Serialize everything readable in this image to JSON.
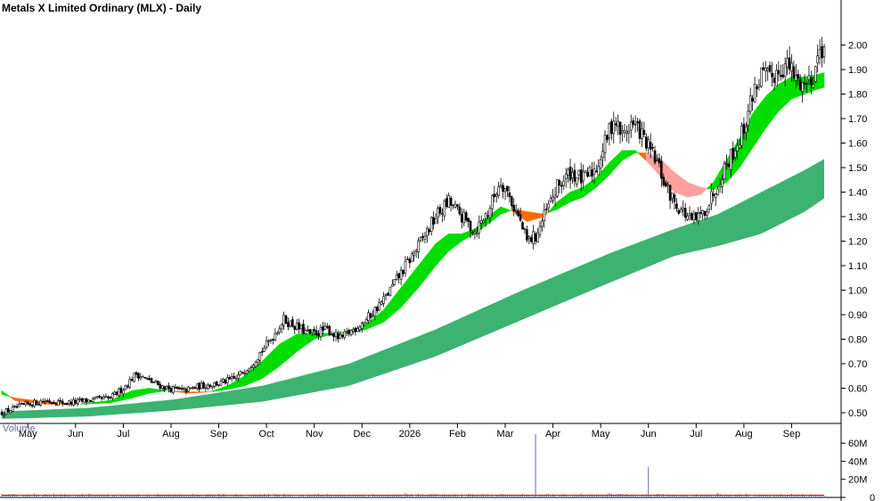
{
  "chart_data": {
    "type": "candlestick",
    "title": "Metals X Limited Ordinary (MLX) - Daily",
    "price_axis": {
      "ticks": [
        "0.50",
        "0.60",
        "0.70",
        "0.80",
        "0.90",
        "1.00",
        "1.10",
        "1.20",
        "1.30",
        "1.40",
        "1.50",
        "1.60",
        "1.70",
        "1.80",
        "1.90",
        "2.00"
      ],
      "ylim": [
        0.45,
        2.02
      ]
    },
    "x_axis": {
      "tick_labels": [
        "May",
        "Jun",
        "Jul",
        "Aug",
        "Sep",
        "Oct",
        "Nov",
        "Dec",
        "2026",
        "Feb",
        "Mar",
        "Apr",
        "May",
        "Jun",
        "Jul",
        "Aug",
        "Sep"
      ],
      "tick_index": [
        12,
        34,
        56,
        78,
        100,
        122,
        144,
        166,
        188,
        210,
        232,
        254,
        276,
        298,
        320,
        342,
        364
      ],
      "n_bars": 380
    },
    "close_path": [
      [
        0,
        0.5
      ],
      [
        10,
        0.53
      ],
      [
        20,
        0.55
      ],
      [
        30,
        0.54
      ],
      [
        40,
        0.55
      ],
      [
        50,
        0.56
      ],
      [
        56,
        0.6
      ],
      [
        62,
        0.66
      ],
      [
        68,
        0.63
      ],
      [
        76,
        0.6
      ],
      [
        84,
        0.59
      ],
      [
        92,
        0.61
      ],
      [
        100,
        0.62
      ],
      [
        108,
        0.64
      ],
      [
        116,
        0.71
      ],
      [
        124,
        0.8
      ],
      [
        130,
        0.88
      ],
      [
        136,
        0.85
      ],
      [
        142,
        0.82
      ],
      [
        150,
        0.84
      ],
      [
        156,
        0.8
      ],
      [
        162,
        0.84
      ],
      [
        168,
        0.88
      ],
      [
        176,
        0.96
      ],
      [
        184,
        1.07
      ],
      [
        192,
        1.18
      ],
      [
        200,
        1.3
      ],
      [
        206,
        1.36
      ],
      [
        212,
        1.3
      ],
      [
        218,
        1.24
      ],
      [
        224,
        1.32
      ],
      [
        230,
        1.45
      ],
      [
        234,
        1.38
      ],
      [
        238,
        1.3
      ],
      [
        242,
        1.2
      ],
      [
        246,
        1.22
      ],
      [
        250,
        1.3
      ],
      [
        256,
        1.42
      ],
      [
        262,
        1.48
      ],
      [
        268,
        1.45
      ],
      [
        274,
        1.5
      ],
      [
        278,
        1.6
      ],
      [
        282,
        1.7
      ],
      [
        286,
        1.63
      ],
      [
        290,
        1.68
      ],
      [
        294,
        1.65
      ],
      [
        298,
        1.58
      ],
      [
        302,
        1.52
      ],
      [
        306,
        1.42
      ],
      [
        310,
        1.36
      ],
      [
        314,
        1.32
      ],
      [
        318,
        1.28
      ],
      [
        322,
        1.3
      ],
      [
        326,
        1.36
      ],
      [
        330,
        1.44
      ],
      [
        334,
        1.52
      ],
      [
        338,
        1.58
      ],
      [
        342,
        1.66
      ],
      [
        346,
        1.8
      ],
      [
        350,
        1.88
      ],
      [
        354,
        1.86
      ],
      [
        358,
        1.9
      ],
      [
        362,
        1.92
      ],
      [
        366,
        1.86
      ],
      [
        370,
        1.84
      ],
      [
        374,
        1.88
      ],
      [
        377,
        1.98
      ],
      [
        379,
        2.0
      ]
    ],
    "short_ribbon": {
      "fast": [
        [
          0,
          0.59
        ],
        [
          6,
          0.55
        ],
        [
          20,
          0.535
        ],
        [
          36,
          0.535
        ],
        [
          50,
          0.55
        ],
        [
          60,
          0.59
        ],
        [
          68,
          0.6
        ],
        [
          76,
          0.59
        ],
        [
          86,
          0.58
        ],
        [
          96,
          0.585
        ],
        [
          104,
          0.61
        ],
        [
          112,
          0.65
        ],
        [
          120,
          0.71
        ],
        [
          128,
          0.78
        ],
        [
          136,
          0.82
        ],
        [
          144,
          0.825
        ],
        [
          152,
          0.823
        ],
        [
          160,
          0.83
        ],
        [
          168,
          0.86
        ],
        [
          176,
          0.92
        ],
        [
          184,
          1.01
        ],
        [
          192,
          1.1
        ],
        [
          200,
          1.19
        ],
        [
          206,
          1.23
        ],
        [
          212,
          1.23
        ],
        [
          218,
          1.25
        ],
        [
          224,
          1.3
        ],
        [
          230,
          1.34
        ],
        [
          236,
          1.32
        ],
        [
          242,
          1.28
        ],
        [
          250,
          1.3
        ],
        [
          256,
          1.36
        ],
        [
          262,
          1.4
        ],
        [
          268,
          1.42
        ],
        [
          274,
          1.46
        ],
        [
          280,
          1.52
        ],
        [
          286,
          1.57
        ],
        [
          292,
          1.57
        ],
        [
          298,
          1.52
        ],
        [
          304,
          1.46
        ],
        [
          310,
          1.4
        ],
        [
          316,
          1.38
        ],
        [
          322,
          1.39
        ],
        [
          328,
          1.44
        ],
        [
          334,
          1.53
        ],
        [
          340,
          1.62
        ],
        [
          346,
          1.72
        ],
        [
          352,
          1.79
        ],
        [
          358,
          1.84
        ],
        [
          364,
          1.87
        ],
        [
          370,
          1.87
        ],
        [
          376,
          1.88
        ],
        [
          380,
          1.89
        ]
      ],
      "slow": [
        [
          0,
          0.575
        ],
        [
          6,
          0.56
        ],
        [
          20,
          0.545
        ],
        [
          36,
          0.535
        ],
        [
          50,
          0.54
        ],
        [
          60,
          0.56
        ],
        [
          68,
          0.58
        ],
        [
          76,
          0.59
        ],
        [
          86,
          0.585
        ],
        [
          96,
          0.585
        ],
        [
          104,
          0.595
        ],
        [
          112,
          0.61
        ],
        [
          120,
          0.64
        ],
        [
          128,
          0.69
        ],
        [
          136,
          0.75
        ],
        [
          144,
          0.8
        ],
        [
          152,
          0.82
        ],
        [
          160,
          0.826
        ],
        [
          168,
          0.84
        ],
        [
          176,
          0.87
        ],
        [
          184,
          0.93
        ],
        [
          192,
          1.01
        ],
        [
          200,
          1.1
        ],
        [
          206,
          1.16
        ],
        [
          212,
          1.2
        ],
        [
          218,
          1.23
        ],
        [
          224,
          1.27
        ],
        [
          230,
          1.31
        ],
        [
          236,
          1.33
        ],
        [
          242,
          1.32
        ],
        [
          250,
          1.31
        ],
        [
          256,
          1.33
        ],
        [
          262,
          1.36
        ],
        [
          268,
          1.38
        ],
        [
          274,
          1.42
        ],
        [
          280,
          1.47
        ],
        [
          286,
          1.53
        ],
        [
          292,
          1.56
        ],
        [
          298,
          1.56
        ],
        [
          304,
          1.53
        ],
        [
          310,
          1.48
        ],
        [
          316,
          1.44
        ],
        [
          322,
          1.42
        ],
        [
          328,
          1.41
        ],
        [
          334,
          1.44
        ],
        [
          340,
          1.5
        ],
        [
          346,
          1.58
        ],
        [
          352,
          1.66
        ],
        [
          358,
          1.73
        ],
        [
          364,
          1.78
        ],
        [
          370,
          1.8
        ],
        [
          376,
          1.82
        ],
        [
          380,
          1.83
        ]
      ]
    },
    "long_ribbon": {
      "upper": [
        [
          0,
          0.505
        ],
        [
          40,
          0.52
        ],
        [
          80,
          0.555
        ],
        [
          120,
          0.61
        ],
        [
          160,
          0.7
        ],
        [
          200,
          0.84
        ],
        [
          240,
          1.0
        ],
        [
          280,
          1.15
        ],
        [
          310,
          1.25
        ],
        [
          330,
          1.31
        ],
        [
          350,
          1.4
        ],
        [
          370,
          1.49
        ],
        [
          380,
          1.54
        ]
      ],
      "lower": [
        [
          0,
          0.475
        ],
        [
          40,
          0.485
        ],
        [
          80,
          0.51
        ],
        [
          120,
          0.545
        ],
        [
          160,
          0.61
        ],
        [
          200,
          0.73
        ],
        [
          240,
          0.88
        ],
        [
          280,
          1.03
        ],
        [
          310,
          1.14
        ],
        [
          330,
          1.18
        ],
        [
          350,
          1.23
        ],
        [
          370,
          1.32
        ],
        [
          380,
          1.38
        ]
      ]
    },
    "volume": {
      "label": "Volume",
      "ticks": [
        "0",
        "20M",
        "40M",
        "60M"
      ],
      "ylim": [
        0,
        70
      ],
      "spikes": [
        [
          246,
          70
        ],
        [
          298,
          34
        ],
        [
          280,
          5
        ],
        [
          130,
          4
        ],
        [
          186,
          5
        ],
        [
          200,
          4
        ],
        [
          16,
          3
        ],
        [
          76,
          3
        ],
        [
          330,
          5
        ],
        [
          352,
          3
        ]
      ],
      "baseline": 2.5
    }
  },
  "colors": {
    "candle": "#000000",
    "short_up": "#00dd00",
    "short_down_strong": "#ff6a00",
    "short_down_weak": "#ffa0a0",
    "long_ribbon": "#3cb371",
    "volume": "#6a6aa8",
    "volume_avg": "#cc0000",
    "grid": "#7a7acc"
  }
}
